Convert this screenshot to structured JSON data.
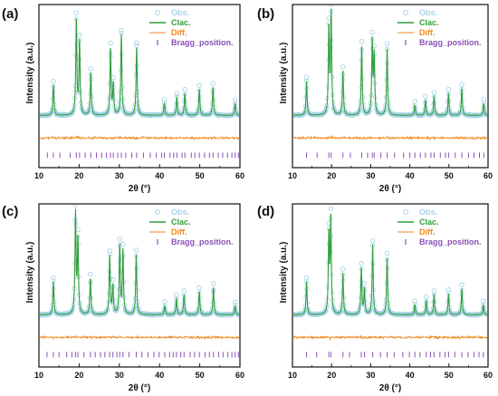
{
  "colors": {
    "obs": "#a8d3e6",
    "calc": "#2e9e3a",
    "diff": "#f08a1e",
    "bragg": "#8a52b5",
    "axis": "#111111"
  },
  "chart_data": [
    {
      "type": "line",
      "panel_label": "(a)",
      "xlabel": "2θ (°)",
      "ylabel": "Intensity (a.u.)",
      "xlim": [
        10,
        60
      ],
      "xticks": [
        "10",
        "20",
        "30",
        "40",
        "50",
        "60"
      ],
      "legend_position": "top-right",
      "legend": [
        "Obs.",
        "Clac.",
        "Diff.",
        "Bragg_position."
      ],
      "peaks": [
        {
          "x": 13.6,
          "y": 0.3
        },
        {
          "x": 19.3,
          "y": 0.95
        },
        {
          "x": 20.1,
          "y": 0.72
        },
        {
          "x": 22.9,
          "y": 0.42
        },
        {
          "x": 27.8,
          "y": 0.66
        },
        {
          "x": 28.5,
          "y": 0.3
        },
        {
          "x": 30.5,
          "y": 0.8
        },
        {
          "x": 34.3,
          "y": 0.68
        },
        {
          "x": 41.2,
          "y": 0.12
        },
        {
          "x": 44.3,
          "y": 0.18
        },
        {
          "x": 46.3,
          "y": 0.22
        },
        {
          "x": 49.9,
          "y": 0.26
        },
        {
          "x": 53.3,
          "y": 0.28
        },
        {
          "x": 58.8,
          "y": 0.12
        }
      ],
      "bragg_positions": [
        12.1,
        13.6,
        15.2,
        17.8,
        19.3,
        20.1,
        21.5,
        22.9,
        24.3,
        25.6,
        26.8,
        27.8,
        28.5,
        29.6,
        30.5,
        31.6,
        33.1,
        34.3,
        36.0,
        37.7,
        39.2,
        40.5,
        41.2,
        42.6,
        43.5,
        44.3,
        45.6,
        46.3,
        47.9,
        48.8,
        49.9,
        51.2,
        52.4,
        53.3,
        54.6,
        55.7,
        56.9,
        58.0,
        58.8,
        59.6
      ]
    },
    {
      "type": "line",
      "panel_label": "(b)",
      "xlabel": "2θ (°)",
      "ylabel": "Intensity (a.u.)",
      "xlim": [
        10,
        60
      ],
      "xticks": [
        "10",
        "20",
        "30",
        "40",
        "50",
        "60"
      ],
      "legend_position": "top-right",
      "legend": [
        "Obs.",
        "Clac.",
        "Diff.",
        "Bragg_position."
      ],
      "peaks": [
        {
          "x": 13.6,
          "y": 0.34
        },
        {
          "x": 19.3,
          "y": 0.86
        },
        {
          "x": 19.9,
          "y": 1.0
        },
        {
          "x": 22.9,
          "y": 0.44
        },
        {
          "x": 27.7,
          "y": 0.69
        },
        {
          "x": 30.4,
          "y": 0.73
        },
        {
          "x": 30.9,
          "y": 0.58
        },
        {
          "x": 34.2,
          "y": 0.67
        },
        {
          "x": 41.3,
          "y": 0.1
        },
        {
          "x": 44.0,
          "y": 0.15
        },
        {
          "x": 46.2,
          "y": 0.19
        },
        {
          "x": 49.9,
          "y": 0.22
        },
        {
          "x": 53.3,
          "y": 0.27
        },
        {
          "x": 58.9,
          "y": 0.12
        }
      ],
      "bragg_positions": [
        13.6,
        16.3,
        19.3,
        19.9,
        22.9,
        24.8,
        27.7,
        29.2,
        30.4,
        30.9,
        32.6,
        34.2,
        36.1,
        38.4,
        40.0,
        41.3,
        42.7,
        44.0,
        45.4,
        46.2,
        47.8,
        49.1,
        49.9,
        51.6,
        53.3,
        55.0,
        56.4,
        57.8,
        58.9
      ]
    },
    {
      "type": "line",
      "panel_label": "(c)",
      "xlabel": "2θ (°)",
      "ylabel": "Intensity (a.u.)",
      "xlim": [
        10,
        60
      ],
      "xticks": [
        "10",
        "20",
        "30",
        "40",
        "50",
        "60"
      ],
      "legend_position": "top-right",
      "legend": [
        "Obs.",
        "Clac.",
        "Diff.",
        "Bragg_position."
      ],
      "peaks": [
        {
          "x": 13.6,
          "y": 0.33
        },
        {
          "x": 19.1,
          "y": 1.0
        },
        {
          "x": 19.7,
          "y": 0.74
        },
        {
          "x": 22.8,
          "y": 0.36
        },
        {
          "x": 27.6,
          "y": 0.58
        },
        {
          "x": 28.4,
          "y": 0.28
        },
        {
          "x": 30.1,
          "y": 0.68
        },
        {
          "x": 30.9,
          "y": 0.63
        },
        {
          "x": 34.2,
          "y": 0.6
        },
        {
          "x": 41.3,
          "y": 0.09
        },
        {
          "x": 44.2,
          "y": 0.16
        },
        {
          "x": 46.1,
          "y": 0.2
        },
        {
          "x": 49.9,
          "y": 0.23
        },
        {
          "x": 53.4,
          "y": 0.27
        },
        {
          "x": 58.8,
          "y": 0.09
        }
      ],
      "bragg_positions": [
        12.0,
        13.6,
        15.0,
        16.9,
        18.2,
        19.1,
        19.7,
        21.2,
        22.8,
        24.0,
        25.3,
        26.4,
        27.6,
        28.4,
        29.4,
        30.1,
        30.9,
        32.4,
        34.2,
        35.6,
        37.1,
        38.6,
        39.9,
        41.3,
        42.5,
        43.4,
        44.2,
        45.3,
        46.1,
        47.6,
        48.7,
        49.9,
        51.3,
        52.4,
        53.4,
        54.7,
        55.8,
        57.0,
        58.0,
        58.8,
        59.6
      ]
    },
    {
      "type": "line",
      "panel_label": "(d)",
      "xlabel": "2θ (°)",
      "ylabel": "Intensity (a.u.)",
      "xlim": [
        10,
        60
      ],
      "xticks": [
        "10",
        "20",
        "30",
        "40",
        "50",
        "60"
      ],
      "legend_position": "top-right",
      "legend": [
        "Obs.",
        "Clac.",
        "Diff.",
        "Bragg_position."
      ],
      "peaks": [
        {
          "x": 13.6,
          "y": 0.33
        },
        {
          "x": 19.3,
          "y": 0.78
        },
        {
          "x": 19.8,
          "y": 0.94
        },
        {
          "x": 22.9,
          "y": 0.41
        },
        {
          "x": 27.6,
          "y": 0.46
        },
        {
          "x": 28.4,
          "y": 0.25
        },
        {
          "x": 30.5,
          "y": 0.69
        },
        {
          "x": 34.2,
          "y": 0.57
        },
        {
          "x": 41.3,
          "y": 0.1
        },
        {
          "x": 44.2,
          "y": 0.14
        },
        {
          "x": 46.2,
          "y": 0.2
        },
        {
          "x": 49.9,
          "y": 0.21
        },
        {
          "x": 53.3,
          "y": 0.26
        },
        {
          "x": 58.8,
          "y": 0.1
        }
      ],
      "bragg_positions": [
        13.6,
        16.2,
        19.3,
        19.8,
        22.9,
        24.6,
        27.6,
        28.4,
        30.5,
        32.5,
        34.2,
        36.0,
        38.2,
        39.9,
        41.3,
        42.6,
        44.2,
        45.3,
        46.2,
        47.7,
        49.0,
        49.9,
        51.5,
        53.3,
        54.9,
        56.4,
        57.7,
        58.8
      ]
    }
  ]
}
